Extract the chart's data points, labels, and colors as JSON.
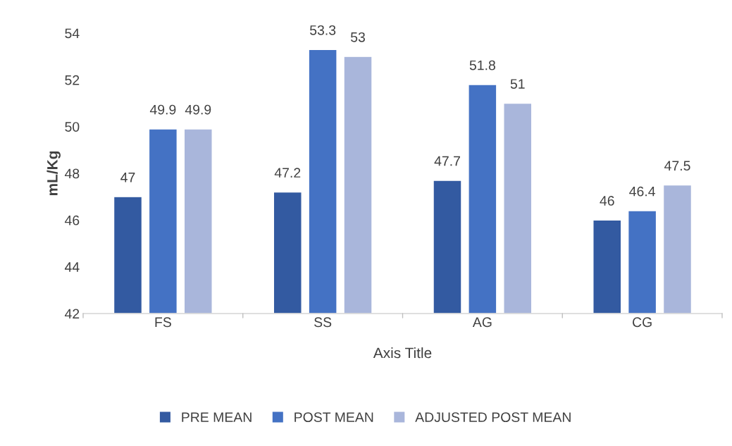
{
  "chart_data": {
    "type": "bar",
    "xlabel": "Axis Title",
    "ylabel": "mL/Kg",
    "categories": [
      "FS",
      "SS",
      "AG",
      "CG"
    ],
    "series": [
      {
        "name": "PRE MEAN",
        "color": "#335aa1",
        "values": [
          47,
          47.2,
          47.7,
          46
        ]
      },
      {
        "name": "POST MEAN",
        "color": "#4472c4",
        "values": [
          49.9,
          53.3,
          51.8,
          46.4
        ]
      },
      {
        "name": "ADJUSTED POST MEAN",
        "color": "#a9b6db",
        "values": [
          49.9,
          53,
          51,
          47.5
        ]
      }
    ],
    "ylim": [
      42,
      54
    ],
    "yticks": [
      42,
      44,
      46,
      48,
      50,
      52,
      54
    ],
    "grid": false,
    "legend": "bottom",
    "data_labels": true
  }
}
